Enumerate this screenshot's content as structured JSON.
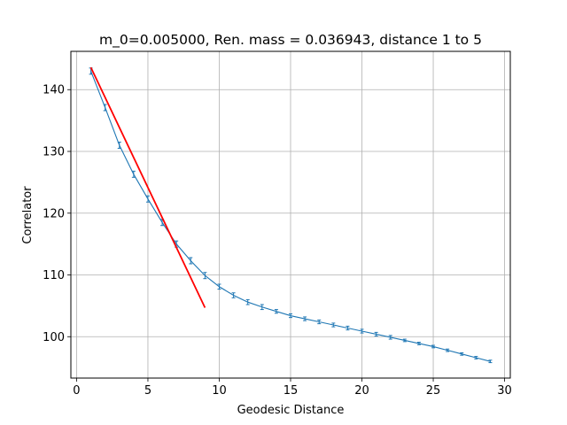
{
  "chart_data": {
    "type": "line",
    "title": "m_0=0.005000, Ren. mass = 0.036943, distance 1 to 5",
    "xlabel": "Geodesic Distance",
    "ylabel": "Correlator",
    "xlim": [
      -0.4,
      30.4
    ],
    "ylim": [
      93.3,
      146.2
    ],
    "xticks": [
      0,
      5,
      10,
      15,
      20,
      25,
      30
    ],
    "yticks": [
      100,
      110,
      120,
      130,
      140
    ],
    "grid": true,
    "series": [
      {
        "kind": "errorbar-line",
        "color": "#1f77b4",
        "x": [
          1,
          2,
          3,
          4,
          5,
          6,
          7,
          8,
          9,
          10,
          11,
          12,
          13,
          14,
          15,
          16,
          17,
          18,
          19,
          20,
          21,
          22,
          23,
          24,
          25,
          26,
          27,
          28,
          29
        ],
        "y": [
          143.0,
          137.1,
          131.0,
          126.3,
          122.3,
          118.5,
          115.0,
          112.3,
          109.9,
          108.1,
          106.7,
          105.6,
          104.8,
          104.1,
          103.4,
          102.9,
          102.4,
          101.9,
          101.4,
          100.9,
          100.4,
          99.9,
          99.4,
          98.9,
          98.4,
          97.8,
          97.2,
          96.6,
          96.0
        ],
        "err": [
          0.5,
          0.5,
          0.5,
          0.5,
          0.5,
          0.5,
          0.5,
          0.5,
          0.5,
          0.4,
          0.4,
          0.4,
          0.4,
          0.3,
          0.3,
          0.3,
          0.3,
          0.3,
          0.3,
          0.3,
          0.3,
          0.3,
          0.2,
          0.2,
          0.2,
          0.2,
          0.2,
          0.2,
          0.2
        ]
      },
      {
        "kind": "fit-line",
        "color": "#ff0000",
        "x": [
          1,
          9
        ],
        "y": [
          143.6,
          104.7
        ]
      }
    ]
  }
}
